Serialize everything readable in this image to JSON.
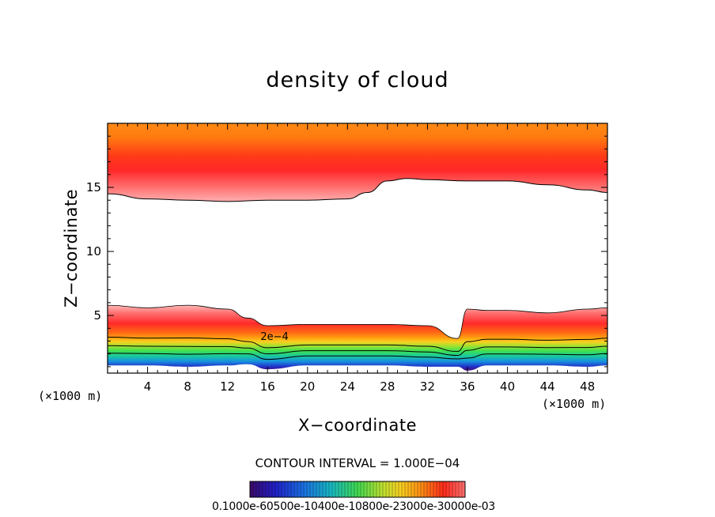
{
  "chart_data": {
    "type": "heatmap",
    "title": "density of cloud",
    "xlabel": "X−coordinate",
    "ylabel": "Z−coordinate",
    "x_unit": "(×1000 m)",
    "xlim": [
      0,
      50
    ],
    "ylim": [
      0.5,
      20
    ],
    "x_ticks": [
      "4",
      "8",
      "12",
      "16",
      "20",
      "24",
      "28",
      "32",
      "36",
      "40",
      "44",
      "48"
    ],
    "x_tick_values": [
      4,
      8,
      12,
      16,
      20,
      24,
      28,
      32,
      36,
      40,
      44,
      48
    ],
    "y_ticks": [
      "5",
      "10",
      "15"
    ],
    "y_tick_values": [
      5,
      10,
      15
    ],
    "contour_interval": "CONTOUR INTERVAL = 1.000E−04",
    "contour_label": "2e−4",
    "colorbar_labels": "0.1000e-60500e-10400e-10800e-23000e-30000e-03",
    "upper_layer": {
      "x": [
        0,
        4,
        8,
        12,
        16,
        20,
        24,
        26,
        28,
        30,
        32,
        36,
        40,
        44,
        48,
        50
      ],
      "base_z": [
        14.5,
        14.1,
        14.0,
        13.9,
        14.0,
        14.0,
        14.1,
        14.6,
        15.5,
        15.7,
        15.6,
        15.5,
        15.5,
        15.2,
        14.8,
        14.6
      ],
      "top_z": 19.8
    },
    "lower_layer": {
      "x": [
        0,
        4,
        8,
        12,
        14,
        16,
        20,
        24,
        28,
        32,
        35,
        36,
        38,
        40,
        44,
        48,
        50
      ],
      "top_z": [
        5.8,
        5.6,
        5.8,
        5.5,
        4.8,
        4.2,
        4.3,
        4.3,
        4.3,
        4.2,
        3.2,
        5.5,
        5.4,
        5.4,
        5.2,
        5.5,
        5.6
      ],
      "base_z": [
        1.1,
        1.1,
        1.0,
        1.1,
        1.2,
        0.8,
        1.1,
        1.1,
        1.1,
        1.0,
        1.0,
        0.7,
        1.1,
        1.1,
        1.1,
        1.0,
        1.1
      ]
    },
    "colormap": [
      "#3a0a6a",
      "#1a28c8",
      "#14a0e0",
      "#20c878",
      "#5ee04a",
      "#c8e030",
      "#f8d020",
      "#ffa010",
      "#ff5a14",
      "#ff2020",
      "#ff7a7a",
      "#ffc0c0"
    ]
  }
}
